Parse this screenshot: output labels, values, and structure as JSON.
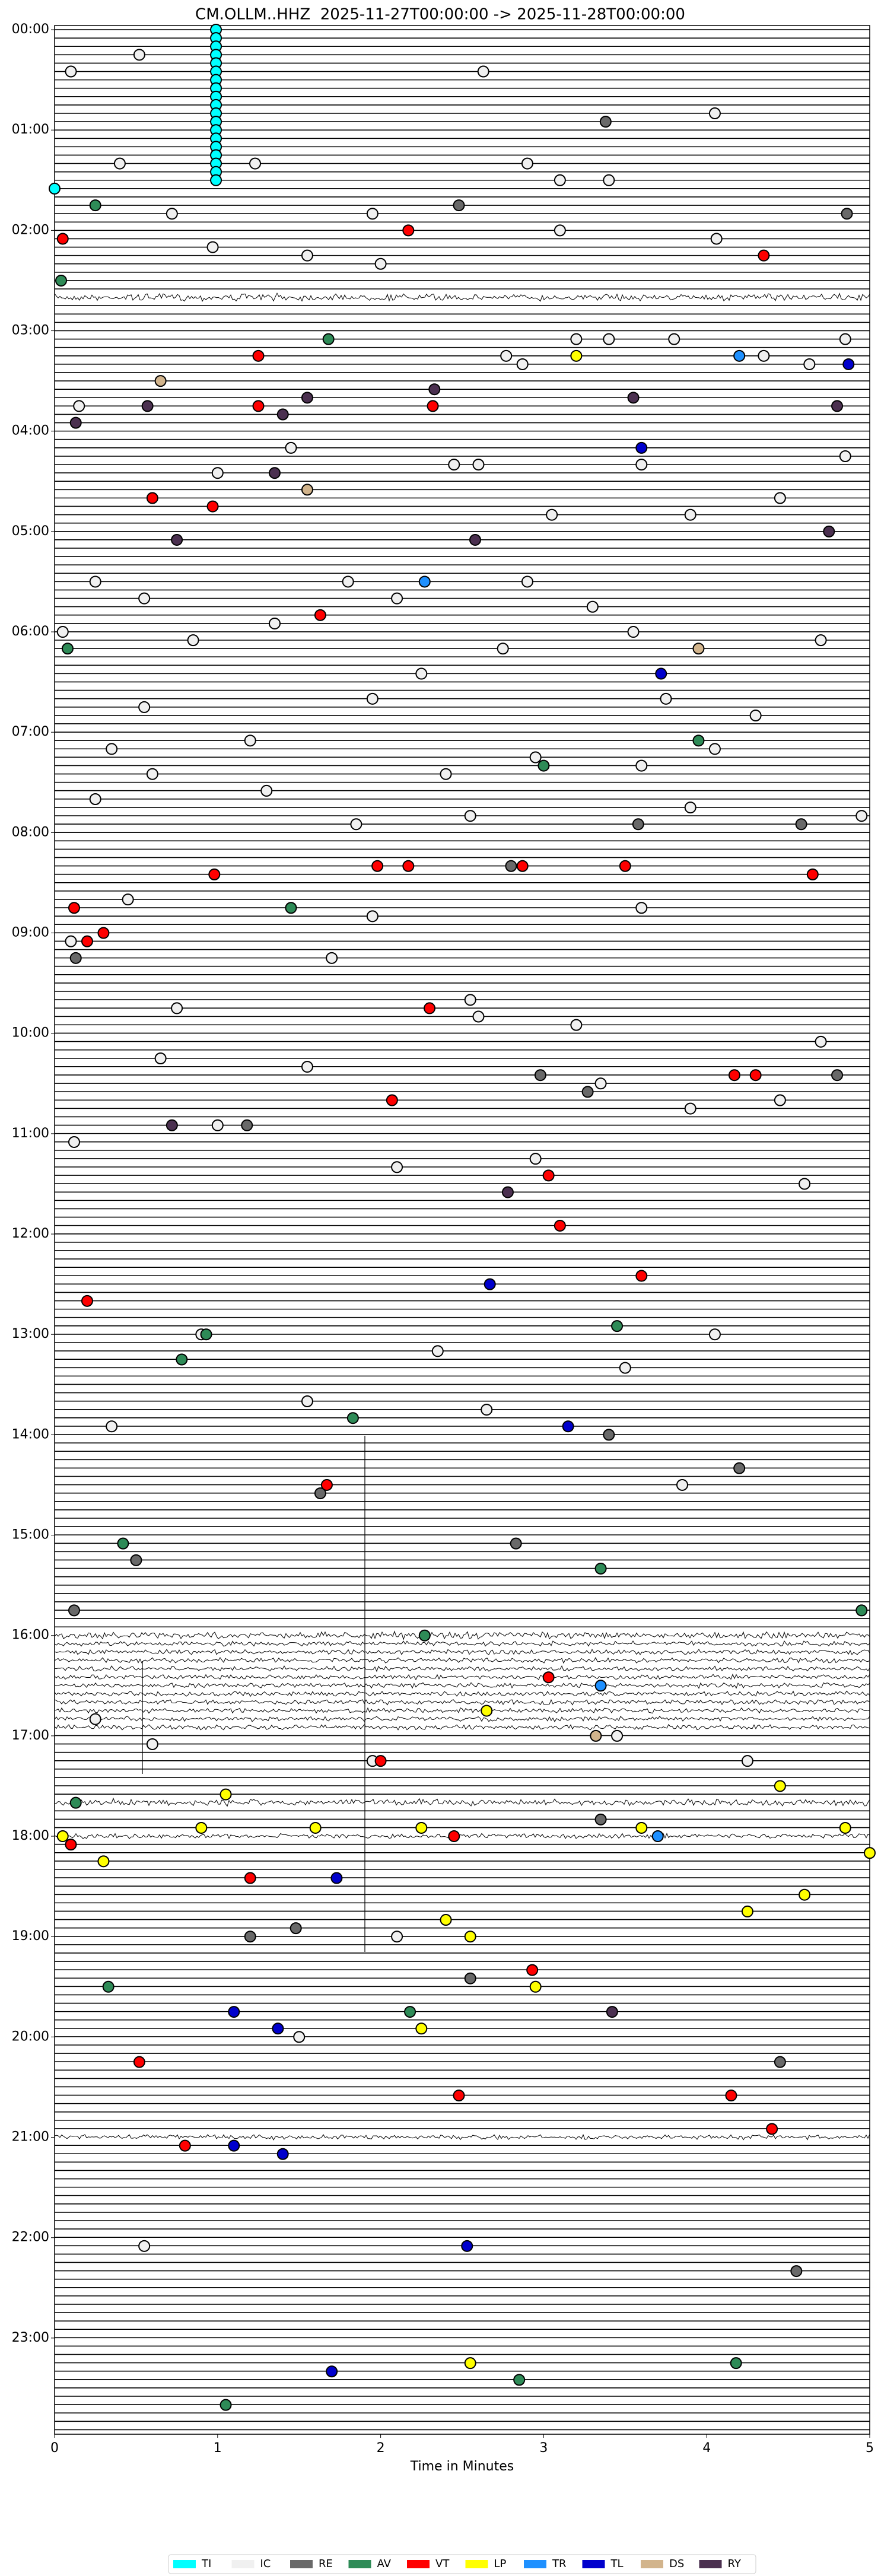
{
  "chart_data": {
    "type": "scatter",
    "title": "CM.OLLM..HHZ  2025-11-27T00:00:00 -> 2025-11-28T00:00:00",
    "xlabel": "Time in Minutes",
    "xlim": [
      0,
      5
    ],
    "xticks": [
      0,
      1,
      2,
      3,
      4,
      5
    ],
    "ylim": [
      -2.5,
      1437.5
    ],
    "yticks": [
      {
        "value": 0,
        "label": "00:00"
      },
      {
        "value": 60,
        "label": "01:00"
      },
      {
        "value": 120,
        "label": "02:00"
      },
      {
        "value": 180,
        "label": "03:00"
      },
      {
        "value": 240,
        "label": "04:00"
      },
      {
        "value": 300,
        "label": "05:00"
      },
      {
        "value": 360,
        "label": "06:00"
      },
      {
        "value": 420,
        "label": "07:00"
      },
      {
        "value": 480,
        "label": "08:00"
      },
      {
        "value": 540,
        "label": "09:00"
      },
      {
        "value": 600,
        "label": "10:00"
      },
      {
        "value": 660,
        "label": "11:00"
      },
      {
        "value": 720,
        "label": "12:00"
      },
      {
        "value": 780,
        "label": "13:00"
      },
      {
        "value": 840,
        "label": "14:00"
      },
      {
        "value": 900,
        "label": "15:00"
      },
      {
        "value": 960,
        "label": "16:00"
      },
      {
        "value": 1020,
        "label": "17:00"
      },
      {
        "value": 1080,
        "label": "18:00"
      },
      {
        "value": 1140,
        "label": "19:00"
      },
      {
        "value": 1200,
        "label": "20:00"
      },
      {
        "value": 1260,
        "label": "21:00"
      },
      {
        "value": 1320,
        "label": "22:00"
      },
      {
        "value": 1380,
        "label": "23:00"
      }
    ],
    "series": [
      {
        "name": "TI",
        "color": "#00ffff",
        "x": [
          0.99,
          0.99,
          0.99,
          0.99,
          0.99,
          0.99,
          0.99,
          0.99,
          0.99,
          0.99,
          0.99,
          0.99,
          0.99,
          0.99,
          0.99,
          0.99,
          0.99,
          0.99,
          0.99,
          0
        ],
        "y": [
          0,
          5,
          10,
          15,
          20,
          25,
          30,
          35,
          40,
          45,
          50,
          55,
          60,
          65,
          70,
          75,
          80,
          85,
          90,
          95
        ]
      },
      {
        "name": "IC",
        "color": "#f0f0f0",
        "x": [
          0.52,
          0.1,
          2.63,
          4.05,
          0.4,
          1.23,
          2.9,
          3.1,
          3.4,
          0.72,
          1.95,
          0.97,
          1.55,
          3.1,
          4.06,
          2.0,
          4.85,
          3.2,
          3.4,
          3.8,
          4.35,
          4.63,
          2.77,
          2.87,
          0.15,
          2.45,
          2.6,
          3.6,
          4.85,
          1.0,
          1.45,
          3.05,
          3.9,
          4.45,
          0.25,
          0.55,
          1.8,
          2.1,
          2.9,
          3.3,
          0.05,
          0.85,
          1.35,
          2.75,
          3.55,
          4.7,
          0.55,
          1.95,
          2.25,
          3.75,
          4.3,
          0.35,
          1.2,
          2.95,
          4.05,
          0.6,
          2.4,
          3.6,
          0.25,
          1.3,
          2.55,
          3.9,
          4.95,
          1.85,
          0.45,
          1.95,
          3.6,
          1.7,
          0.1,
          0.75,
          2.55,
          2.6,
          3.2,
          4.7,
          0.65,
          1.55,
          3.35,
          3.9,
          4.45,
          0.12,
          1.0,
          2.1,
          2.95,
          4.6,
          0.9,
          2.35,
          3.5,
          4.05,
          1.55,
          2.65,
          0.35,
          3.85,
          0.25,
          0.6,
          1.95,
          3.45,
          4.25,
          2.1,
          1.5,
          0.55
        ],
        "y": [
          15,
          25,
          25,
          50,
          80,
          80,
          80,
          90,
          90,
          110,
          110,
          130,
          135,
          120,
          125,
          140,
          185,
          185,
          185,
          185,
          195,
          200,
          195,
          200,
          225,
          260,
          260,
          260,
          255,
          265,
          250,
          290,
          290,
          280,
          330,
          340,
          330,
          340,
          330,
          345,
          360,
          365,
          355,
          370,
          360,
          365,
          405,
          400,
          385,
          400,
          410,
          430,
          425,
          435,
          430,
          445,
          445,
          440,
          460,
          455,
          470,
          465,
          470,
          475,
          520,
          530,
          525,
          555,
          545,
          585,
          580,
          590,
          595,
          605,
          615,
          620,
          630,
          645,
          640,
          665,
          655,
          680,
          675,
          690,
          780,
          790,
          800,
          780,
          820,
          825,
          835,
          870,
          1010,
          1025,
          1035,
          1020,
          1035,
          1140,
          1200,
          1325
        ]
      },
      {
        "name": "RE",
        "color": "#696969",
        "x": [
          3.38,
          4.86,
          2.48,
          2.8,
          3.58,
          4.58,
          2.98,
          3.27,
          4.8,
          0.13,
          1.63,
          2.83,
          4.2,
          3.4,
          0.12,
          0.5,
          1.48,
          1.2,
          3.35,
          2.55,
          4.45,
          4.55,
          1.18
        ],
        "y": [
          55,
          110,
          105,
          500,
          475,
          475,
          625,
          635,
          625,
          555,
          875,
          905,
          860,
          840,
          945,
          915,
          1135,
          1140,
          1070,
          1165,
          1215,
          1340,
          655
        ]
      },
      {
        "name": "AV",
        "color": "#2e8b57",
        "x": [
          0.25,
          0.04,
          1.68,
          0.08,
          3.95,
          3.0,
          1.45,
          0.93,
          0.78,
          1.83,
          3.45,
          0.42,
          3.35,
          4.95,
          2.27,
          0.13,
          0.33,
          2.18,
          1.05,
          2.85,
          4.18
        ],
        "y": [
          105,
          150,
          185,
          370,
          425,
          440,
          525,
          780,
          795,
          830,
          775,
          905,
          920,
          945,
          960,
          1060,
          1170,
          1185,
          1420,
          1405,
          1395
        ]
      },
      {
        "name": "VT",
        "color": "#ff0000",
        "x": [
          0.05,
          2.17,
          4.35,
          1.25,
          1.25,
          2.32,
          0.6,
          0.97,
          1.63,
          0.98,
          0.12,
          0.2,
          0.3,
          1.98,
          2.17,
          2.87,
          3.5,
          4.65,
          2.3,
          2.07,
          4.17,
          4.3,
          3.03,
          3.1,
          3.6,
          0.2,
          1.67,
          3.03,
          2.0,
          2.45,
          0.1,
          1.2,
          2.93,
          0.52,
          2.48,
          4.15,
          4.4,
          0.8
        ],
        "y": [
          125,
          120,
          135,
          195,
          225,
          225,
          280,
          285,
          350,
          505,
          525,
          545,
          540,
          500,
          500,
          500,
          500,
          505,
          585,
          640,
          625,
          625,
          685,
          715,
          745,
          760,
          870,
          985,
          1035,
          1080,
          1085,
          1105,
          1160,
          1215,
          1235,
          1235,
          1255,
          1265
        ]
      },
      {
        "name": "LP",
        "color": "#ffff00",
        "x": [
          3.2,
          2.65,
          4.45,
          1.05,
          0.05,
          0.9,
          1.6,
          2.25,
          3.6,
          4.85,
          5.0,
          0.3,
          4.25,
          4.6,
          2.55,
          2.95,
          2.25,
          2.55,
          2.4
        ],
        "y": [
          195,
          1005,
          1050,
          1055,
          1080,
          1075,
          1075,
          1075,
          1075,
          1075,
          1090,
          1095,
          1125,
          1115,
          1140,
          1170,
          1195,
          1395,
          1130
        ]
      },
      {
        "name": "TR",
        "color": "#1e90ff",
        "x": [
          4.2,
          2.27,
          3.35,
          3.7
        ],
        "y": [
          195,
          330,
          990,
          1080
        ]
      },
      {
        "name": "TL",
        "color": "#0000cd",
        "x": [
          4.87,
          3.6,
          3.72,
          2.67,
          3.15,
          1.73,
          1.1,
          1.37,
          1.1,
          1.4,
          2.53,
          1.7
        ],
        "y": [
          200,
          250,
          385,
          750,
          835,
          1105,
          1185,
          1195,
          1265,
          1270,
          1325,
          1400
        ]
      },
      {
        "name": "DS",
        "color": "#d2b48c",
        "x": [
          0.65,
          1.55,
          3.95,
          3.32
        ],
        "y": [
          210,
          275,
          370,
          1020
        ]
      },
      {
        "name": "RY",
        "color": "#4b3050",
        "x": [
          0.13,
          0.57,
          1.4,
          1.55,
          2.33,
          3.55,
          4.8,
          1.35,
          0.75,
          2.58,
          4.75,
          0.72,
          3.42,
          2.78
        ],
        "y": [
          235,
          225,
          230,
          220,
          215,
          220,
          225,
          265,
          305,
          305,
          300,
          655,
          1185,
          695
        ]
      }
    ]
  }
}
